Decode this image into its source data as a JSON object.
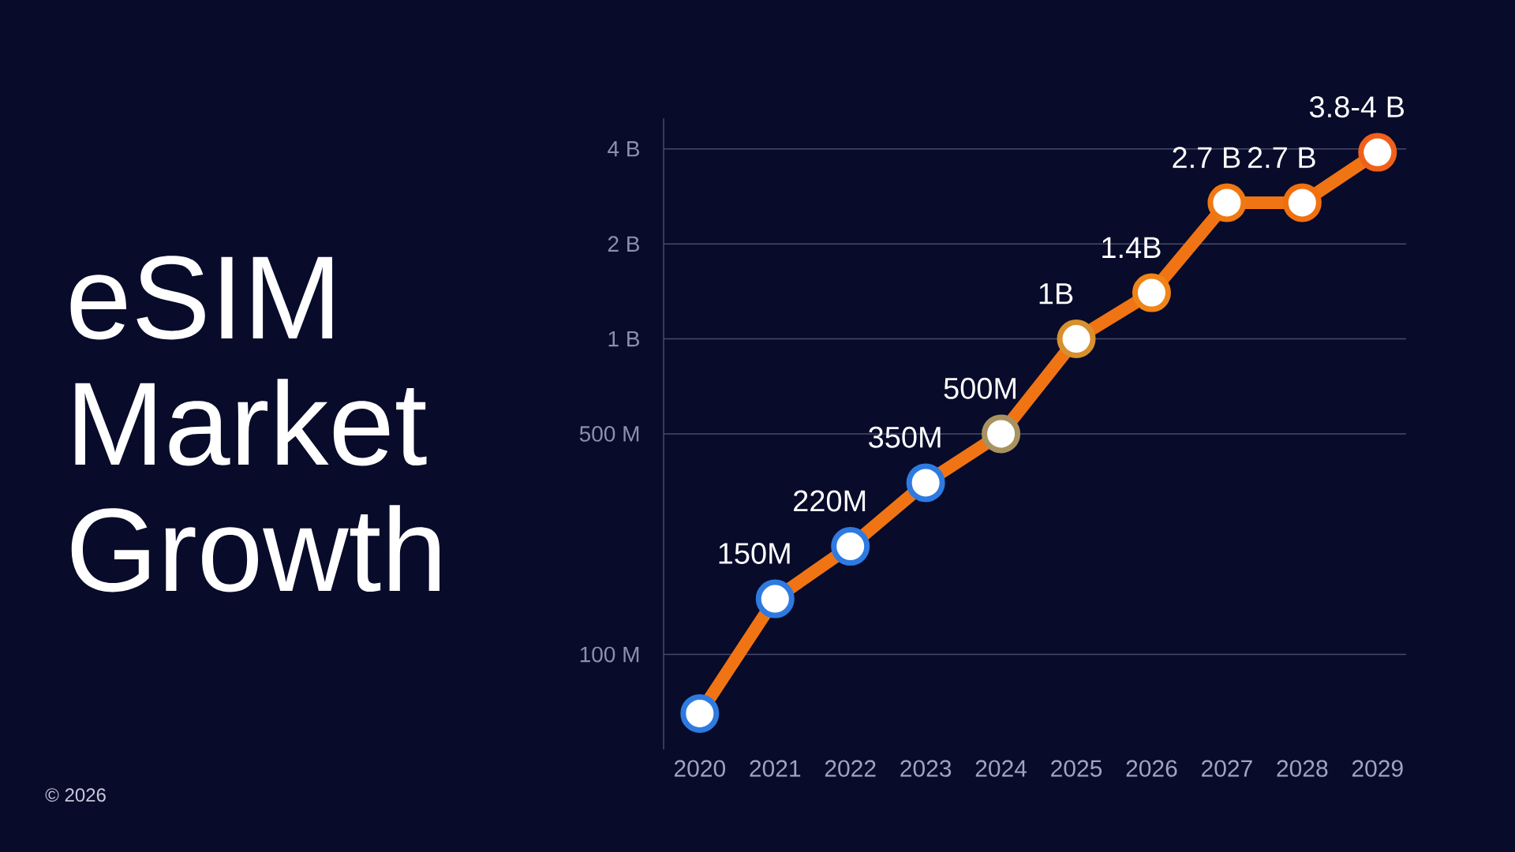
{
  "chart_data": {
    "type": "line",
    "title": "eSIM Market Growth",
    "annotations": [
      "© 2026"
    ],
    "categories": [
      "2020",
      "2021",
      "2022",
      "2023",
      "2024",
      "2025",
      "2026",
      "2027",
      "2028",
      "2029"
    ],
    "series": [
      {
        "color": "#f07414",
        "colors": [
          "#2f7ae0",
          "#2f7ae0",
          "#2f7ae0",
          "#2f7ae0",
          "#a8925e",
          "#d8902e",
          "#ef8418",
          "#f07812",
          "#f07010",
          "#f0601a"
        ],
        "values": [
          65000000,
          150000000,
          220000000,
          350000000,
          500000000,
          1000000000,
          1400000000,
          2700000000,
          2700000000,
          3900000000
        ],
        "value_labels": [
          null,
          "150M",
          "220M",
          "350M",
          "500M",
          "1B",
          "1.4B",
          "2.7 B",
          "2.7 B",
          "3.8-4 B"
        ]
      }
    ],
    "ylim": [
      50000000,
      5000000000
    ],
    "yticks": [
      {
        "value": 100000000,
        "label": "100 M"
      },
      {
        "value": 500000000,
        "label": "500 M"
      },
      {
        "value": 1000000000,
        "label": "1 B"
      },
      {
        "value": 2000000000,
        "label": "2 B"
      },
      {
        "value": 4000000000,
        "label": "4 B"
      }
    ],
    "log": true,
    "grid": "y",
    "marker": "circle",
    "line_style": "solid"
  }
}
